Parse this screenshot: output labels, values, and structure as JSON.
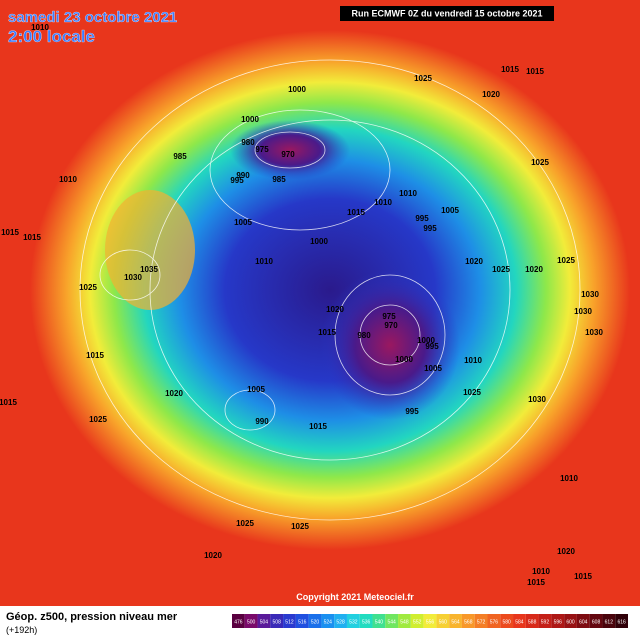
{
  "header": {
    "date": "samedi 23 octobre 2021",
    "time": "2:00 locale",
    "run": "Run ECMWF 0Z du vendredi 15 octobre 2021"
  },
  "footer": {
    "caption": "Géop. z500, pression niveau mer",
    "lead": "(+192h)",
    "copyright": "Copyright 2021 Meteociel.fr"
  },
  "colorbar": {
    "labels": [
      "476",
      "500",
      "504",
      "508",
      "512",
      "516",
      "520",
      "524",
      "528",
      "532",
      "536",
      "540",
      "544",
      "548",
      "552",
      "556",
      "560",
      "564",
      "568",
      "572",
      "576",
      "580",
      "584",
      "588",
      "592",
      "596",
      "600",
      "604",
      "608",
      "612",
      "616"
    ]
  },
  "pressure_labels": [
    "1010",
    "1015",
    "1015",
    "1025",
    "1000",
    "1020",
    "1000",
    "980",
    "975",
    "970",
    "985",
    "1025",
    "1010",
    "990",
    "995",
    "985",
    "1010",
    "1010",
    "1005",
    "995",
    "995",
    "1015",
    "1005",
    "1015",
    "1015",
    "1000",
    "1010",
    "1020",
    "1025",
    "1020",
    "1025",
    "1035",
    "1030",
    "1025",
    "1030",
    "1030",
    "1030",
    "975",
    "970",
    "980",
    "1020",
    "1015",
    "1000",
    "995",
    "1000",
    "1005",
    "1010",
    "1015",
    "1005",
    "1020",
    "1025",
    "1030",
    "1015",
    "990",
    "1025",
    "1015",
    "995",
    "1010",
    "1025",
    "1025",
    "1020",
    "1020",
    "1010",
    "1015",
    "1015"
  ]
}
